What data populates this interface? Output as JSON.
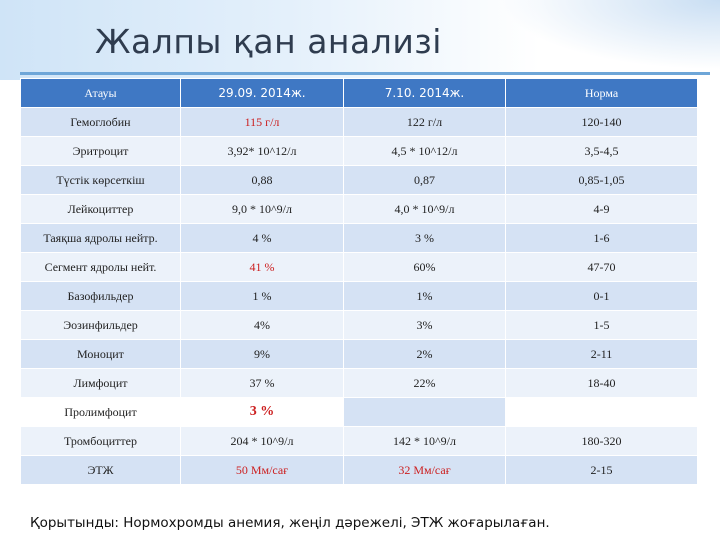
{
  "title": "Жалпы қан анализі",
  "table": {
    "headers": [
      "Атауы",
      "29.09. 2014ж.",
      "7.10. 2014ж.",
      "Норма"
    ],
    "rows": [
      {
        "name": "Гемоглобин",
        "d1": "115 г/л",
        "d2": "122 г/л",
        "norm": "120-140"
      },
      {
        "name": "Эритроцит",
        "d1": "3,92* 10^12/л",
        "d2": "4,5 * 10^12/л",
        "norm": "3,5-4,5"
      },
      {
        "name": "Түстік көрсеткіш",
        "d1": "0,88",
        "d2": "0,87",
        "norm": "0,85-1,05"
      },
      {
        "name": "Лейкоциттер",
        "d1": "9,0 * 10^9/л",
        "d2": "4,0 * 10^9/л",
        "norm": "4-9"
      },
      {
        "name": "Таяқша ядролы нейтр.",
        "d1": "4 %",
        "d2": "3 %",
        "norm": "1-6"
      },
      {
        "name": "Сегмент ядролы нейт.",
        "d1": "41 %",
        "d2": "60%",
        "norm": "47-70"
      },
      {
        "name": "Базофильдер",
        "d1": "1 %",
        "d2": "1%",
        "norm": "0-1"
      },
      {
        "name": "Эозинфильдер",
        "d1": "4%",
        "d2": "3%",
        "norm": "1-5"
      },
      {
        "name": "Моноцит",
        "d1": "9%",
        "d2": "2%",
        "norm": "2-11"
      },
      {
        "name": "Лимфоцит",
        "d1": "37 %",
        "d2": "22%",
        "norm": "18-40"
      },
      {
        "name": "Пролимфоцит",
        "d1": "3 %",
        "d2": "",
        "norm": ""
      },
      {
        "name": "Тромбоциттер",
        "d1": "204 * 10^9/л",
        "d2": "142 * 10^9/л",
        "norm": "180-320"
      },
      {
        "name": "ЭТЖ",
        "d1": "50 Мм/сағ",
        "d2": "32 Мм/сағ",
        "norm": "2-15"
      }
    ]
  },
  "conclusion": "Қорытынды: Нормохромды анемия, жеңіл дәрежелі, ЭТЖ жоғарылаған.",
  "colors": {
    "header": "#3f78c4",
    "highlight": "#cc1f1f"
  }
}
